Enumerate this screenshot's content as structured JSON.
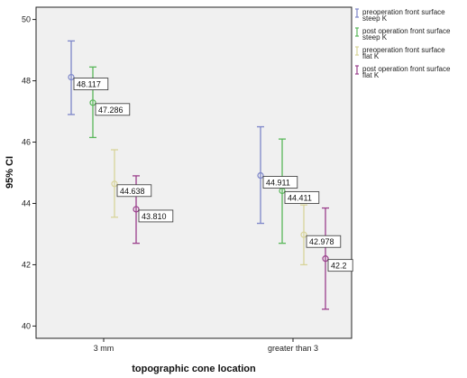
{
  "chart_data": {
    "type": "errorbar",
    "ylabel": "95% CI",
    "xlabel": "topographic cone location",
    "categories": [
      "3 mm",
      "greater than 3"
    ],
    "ylim": [
      39.6,
      50.4
    ],
    "yticks": [
      40,
      42,
      44,
      46,
      48,
      50
    ],
    "grid": false,
    "legend_position": "right",
    "series": [
      {
        "name_lines": [
          "preoperation front surface",
          "steep K"
        ],
        "color": "#7d86c9",
        "points": [
          {
            "category": "3 mm",
            "mean": 48.117,
            "lower": 46.9,
            "upper": 49.3,
            "label": "48.117"
          },
          {
            "category": "greater than 3",
            "mean": 44.911,
            "lower": 43.35,
            "upper": 46.5,
            "label": "44.911"
          }
        ]
      },
      {
        "name_lines": [
          "post operation front surface",
          "steep K"
        ],
        "color": "#59b75a",
        "points": [
          {
            "category": "3 mm",
            "mean": 47.286,
            "lower": 46.15,
            "upper": 48.45,
            "label": "47.286"
          },
          {
            "category": "greater than 3",
            "mean": 44.411,
            "lower": 42.7,
            "upper": 46.1,
            "label": "44.411"
          }
        ]
      },
      {
        "name_lines": [
          "preoperation front surface",
          "flat K"
        ],
        "color": "#d8d49a",
        "points": [
          {
            "category": "3 mm",
            "mean": 44.638,
            "lower": 43.55,
            "upper": 45.75,
            "label": "44.638"
          },
          {
            "category": "greater than 3",
            "mean": 42.978,
            "lower": 42.0,
            "upper": 43.95,
            "label": "42.978"
          }
        ]
      },
      {
        "name_lines": [
          "post operation front surface",
          "flat K"
        ],
        "color": "#9a3f8c",
        "points": [
          {
            "category": "3 mm",
            "mean": 43.81,
            "lower": 42.7,
            "upper": 44.9,
            "label": "43.810"
          },
          {
            "category": "greater than 3",
            "mean": 42.2,
            "lower": 40.55,
            "upper": 43.85,
            "label": "42.2"
          }
        ]
      }
    ]
  }
}
